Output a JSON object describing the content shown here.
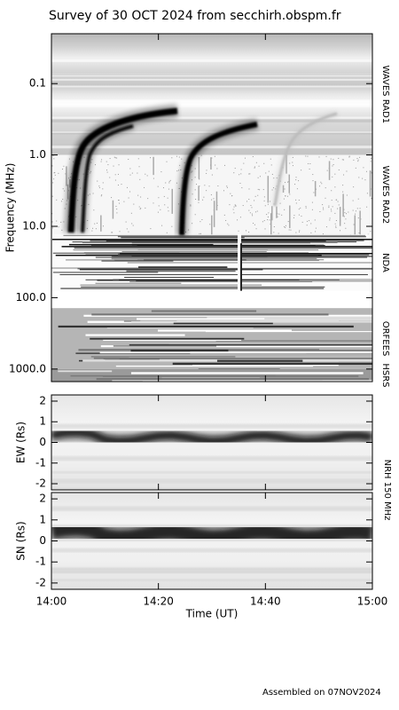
{
  "title": "Survey of 30 OCT 2024 from secchirh.obspm.fr",
  "footer": "Assembled on 07NOV2024",
  "chart_data": [
    {
      "type": "spectrogram",
      "ylabel": "Frequency (MHz)",
      "log": true,
      "ylim": [
        0.02,
        1500
      ],
      "yticks": [
        0.1,
        {
          "value": 1,
          "label": "1.0"
        },
        {
          "value": 10,
          "label": "10.0"
        },
        {
          "value": 100,
          "label": "100.0"
        },
        {
          "value": 1000,
          "label": "1000.0"
        }
      ],
      "xlim": [
        "14:00",
        "15:00"
      ],
      "xticks": [
        "14:00",
        "14:20",
        "14:40",
        "15:00"
      ],
      "bands": [
        {
          "name": "WAVES RAD1",
          "range": [
            0.02,
            1
          ]
        },
        {
          "name": "WAVES RAD2",
          "range": [
            1,
            13
          ]
        },
        {
          "name": "NDA",
          "range": [
            13,
            80
          ]
        },
        {
          "name": "ORFEES",
          "range": [
            140,
            1000
          ]
        },
        {
          "name": "HSRS",
          "range": [
            1000,
            1500
          ]
        }
      ]
    },
    {
      "type": "heatmap",
      "ylabel": "EW (Rs)",
      "ylim": [
        -2.3,
        2.3
      ],
      "yticks": [
        -2,
        -1,
        0,
        1,
        2
      ],
      "xlim": [
        "14:00",
        "15:00"
      ],
      "xticks": [
        "14:00",
        "14:20",
        "14:40",
        "15:00"
      ],
      "instrument": "NRH 150 MHz"
    },
    {
      "type": "heatmap",
      "ylabel": "SN (Rs)",
      "ylim": [
        -2.3,
        2.3
      ],
      "yticks": [
        -2,
        -1,
        0,
        1,
        2
      ],
      "xlim": [
        "14:00",
        "15:00"
      ],
      "xticks": [
        "14:00",
        "14:20",
        "14:40",
        "15:00"
      ],
      "xlabel": "Time (UT)"
    }
  ]
}
